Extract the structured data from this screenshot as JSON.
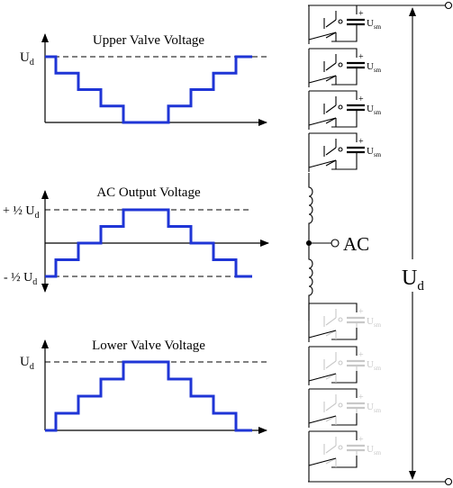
{
  "colors": {
    "axis": "#000000",
    "waveform": "#1f35d6",
    "reference_line": "#000000",
    "circuit": "#000000",
    "inactive_switch": "#c8c8c8"
  },
  "plots": [
    {
      "title": "Upper Valve Voltage",
      "y_labels": [
        "U_d"
      ],
      "levels_of_Ud": [
        1,
        0.75,
        0.5,
        0.25,
        0,
        0,
        0.25,
        0.5,
        0.75,
        1
      ]
    },
    {
      "title": "AC Output Voltage",
      "y_labels": [
        "+ ½ U_d",
        "- ½ U_d"
      ],
      "levels_of_Ud": [
        -0.5,
        -0.25,
        0,
        0.25,
        0.5,
        0.5,
        0.25,
        0,
        -0.25,
        -0.5
      ]
    },
    {
      "title": "Lower Valve Voltage",
      "y_labels": [
        "U_d"
      ],
      "levels_of_Ud": [
        0,
        0.25,
        0.5,
        0.75,
        1,
        1,
        0.75,
        0.5,
        0.25,
        0
      ]
    }
  ],
  "circuit": {
    "submodule_label": "U_sm",
    "cap_plus": "+",
    "ac_label": "AC",
    "dc_label": "U_d",
    "upper_submodules": 4,
    "lower_submodules": 4
  }
}
